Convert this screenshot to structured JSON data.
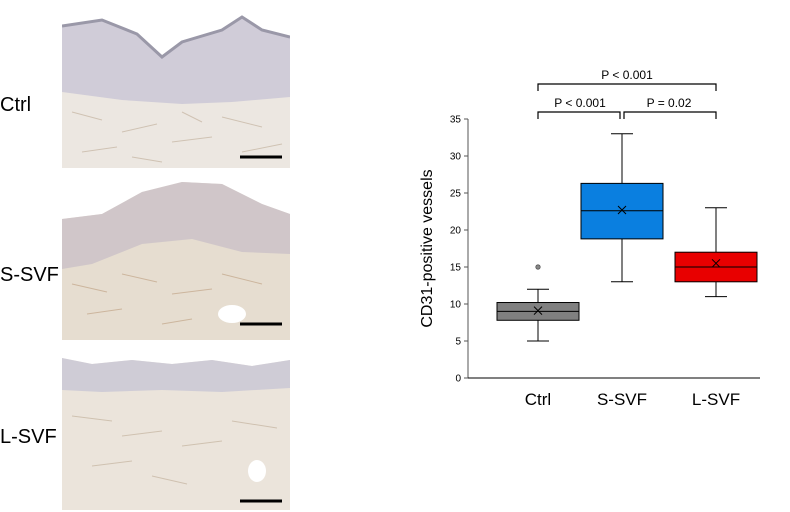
{
  "panels": {
    "labels": [
      "Ctrl",
      "S-SVF",
      "L-SVF"
    ]
  },
  "chart_data": {
    "type": "box",
    "ylabel": "CD31-positive vessels",
    "ylim": [
      0,
      35
    ],
    "yticks": [
      0,
      5,
      10,
      15,
      20,
      25,
      30,
      35
    ],
    "categories": [
      "Ctrl",
      "S-SVF",
      "L-SVF"
    ],
    "boxes": [
      {
        "category": "Ctrl",
        "color": "#808080",
        "min": 5,
        "q1": 7.8,
        "median": 9,
        "q3": 10.2,
        "max": 12,
        "mean": 9.1,
        "outliers": [
          15
        ]
      },
      {
        "category": "S-SVF",
        "color": "#0a7fe0",
        "min": 13,
        "q1": 18.8,
        "median": 22.6,
        "q3": 26.3,
        "max": 33,
        "mean": 22.7,
        "outliers": []
      },
      {
        "category": "L-SVF",
        "color": "#e80000",
        "min": 11,
        "q1": 13,
        "median": 15,
        "q3": 17,
        "max": 23,
        "mean": 15.5,
        "outliers": []
      }
    ],
    "significance": [
      {
        "from": "Ctrl",
        "to": "S-SVF",
        "label": "P < 0.001"
      },
      {
        "from": "S-SVF",
        "to": "L-SVF",
        "label": "P = 0.02"
      },
      {
        "from": "Ctrl",
        "to": "L-SVF",
        "label": "P < 0.001"
      }
    ]
  }
}
